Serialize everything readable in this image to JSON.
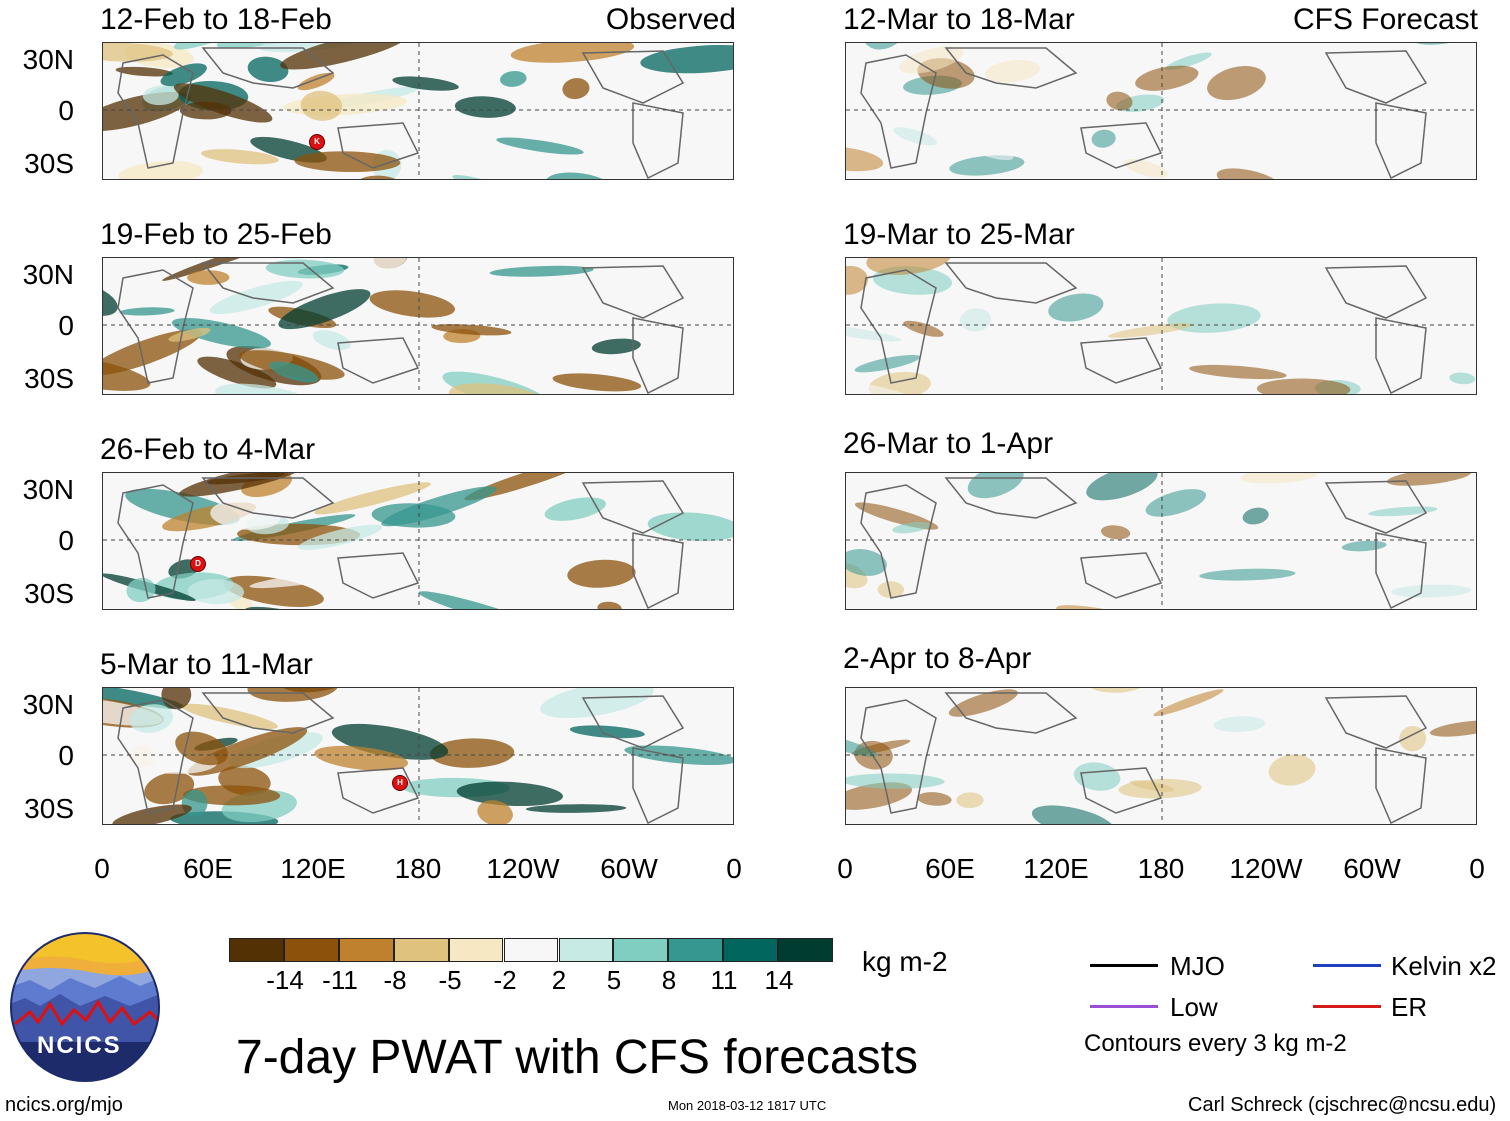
{
  "main_title": "7-day PWAT with CFS forecasts",
  "logo": {
    "text": "NCICS"
  },
  "footer": {
    "site": "ncics.org/mjo",
    "timestamp": "Mon 2018-03-12 1817 UTC",
    "author": "Carl Schreck (cjschrec@ncsu.edu)"
  },
  "labels": {
    "observed": "Observed",
    "forecast": "CFS Forecast"
  },
  "lat_labels": [
    "30N",
    "0",
    "30S"
  ],
  "lon_labels": [
    "0",
    "60E",
    "120E",
    "180",
    "120W",
    "60W",
    "0"
  ],
  "panels_observed": [
    {
      "period": "12-Feb to 18-Feb",
      "storms": [
        "K"
      ]
    },
    {
      "period": "19-Feb to 25-Feb",
      "storms": []
    },
    {
      "period": "26-Feb to 4-Mar",
      "storms": [
        "D"
      ]
    },
    {
      "period": "5-Mar to 11-Mar",
      "storms": [
        "H"
      ]
    }
  ],
  "panels_forecast": [
    {
      "period": "12-Mar to 18-Mar"
    },
    {
      "period": "19-Mar to 25-Mar"
    },
    {
      "period": "26-Mar to 1-Apr"
    },
    {
      "period": "2-Apr to 8-Apr"
    }
  ],
  "colorbar": {
    "units": "kg m-2",
    "ticks": [
      "-14",
      "-11",
      "-8",
      "-5",
      "-2",
      "2",
      "5",
      "8",
      "11",
      "14"
    ],
    "colors": [
      "#543005",
      "#8c510a",
      "#bf812d",
      "#dfc27d",
      "#f6e8c3",
      "#f7f7f7",
      "#c7eae5",
      "#80cdc1",
      "#35978f",
      "#01665e",
      "#003c30"
    ]
  },
  "legend": {
    "items": [
      {
        "label": "MJO",
        "color": "#000000"
      },
      {
        "label": "Kelvin x2",
        "color": "#1f3fbf"
      },
      {
        "label": "Low",
        "color": "#9b4fd6"
      },
      {
        "label": "ER",
        "color": "#d41a1a"
      }
    ],
    "note": "Contours every 3 kg m-2"
  }
}
